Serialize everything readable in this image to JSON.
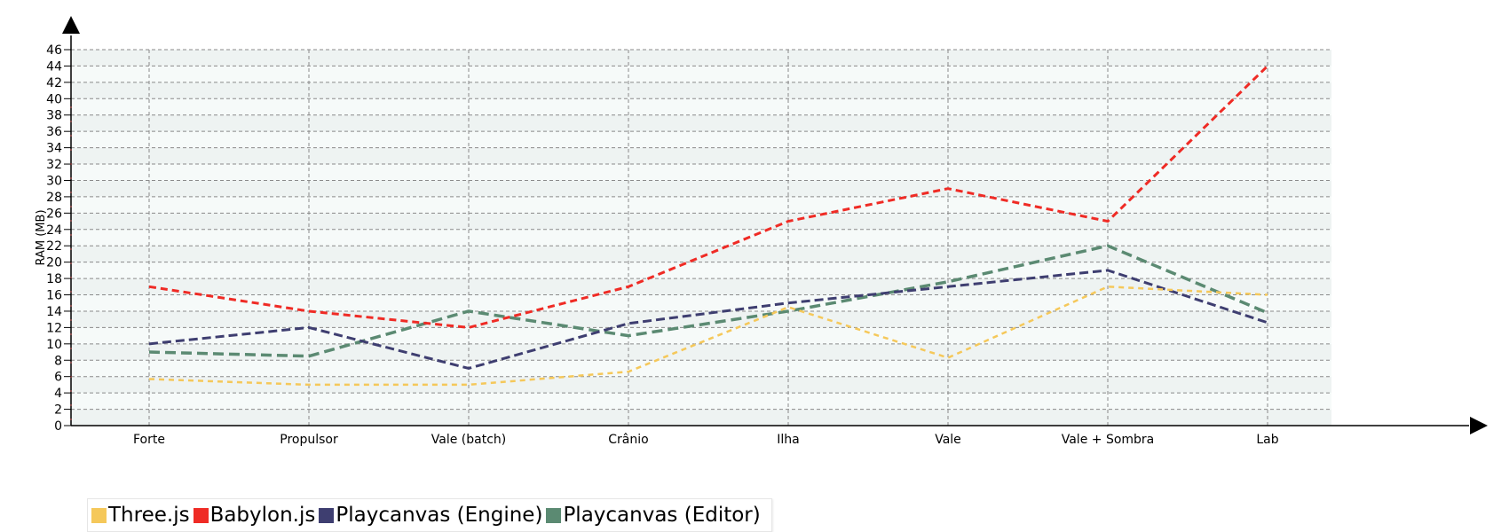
{
  "chart_data": {
    "type": "line",
    "title": "",
    "xlabel": "",
    "ylabel": "RAM (MB)",
    "ylim": [
      0,
      46
    ],
    "ytick_step": 2,
    "grid": true,
    "legend_position": "bottom-left",
    "categories": [
      "Forte",
      "Propulsor",
      "Vale (batch)",
      "Crânio",
      "Ilha",
      "Vale",
      "Vale + Sombra",
      "Lab"
    ],
    "series": [
      {
        "name": "Three.js",
        "color": "#f5c85a",
        "values": [
          5.7,
          5.0,
          5.0,
          6.6,
          14.5,
          8.3,
          17.0,
          16.0
        ]
      },
      {
        "name": "Babylon.js",
        "color": "#ef2b25",
        "values": [
          17.0,
          14.0,
          12.0,
          17.0,
          25.0,
          29.0,
          25.0,
          44.0
        ]
      },
      {
        "name": "Playcanvas (Engine)",
        "color": "#3e3e70",
        "values": [
          10.0,
          12.0,
          7.0,
          12.5,
          15.0,
          17.0,
          19.0,
          12.6
        ]
      },
      {
        "name": "Playcanvas (Editor)",
        "color": "#5b8a72",
        "values": [
          9.0,
          8.5,
          14.0,
          11.0,
          14.0,
          17.6,
          22.0,
          13.8
        ]
      }
    ]
  }
}
